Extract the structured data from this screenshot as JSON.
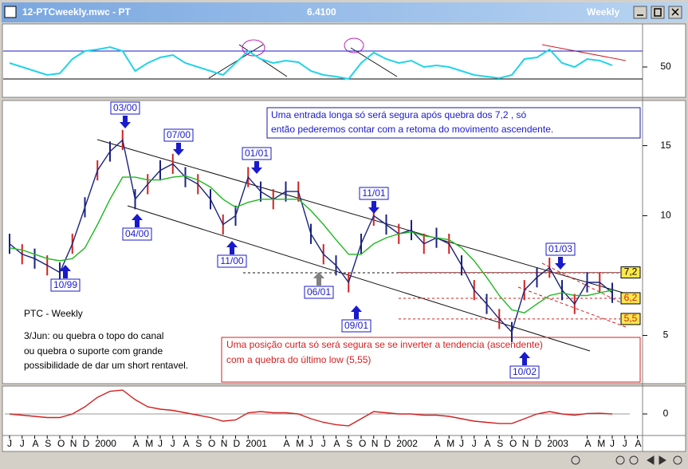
{
  "window": {
    "title": "12-PTCweekly.mwc - PT",
    "last_price": "6.4100",
    "period": "Weekly"
  },
  "chart_data": [
    {
      "type": "line",
      "ylim": [
        14,
        102
      ],
      "yticks": [
        50
      ],
      "bands": [
        70,
        35
      ],
      "series": [
        {
          "name": "Oscillator",
          "color": "#22d3e8",
          "values": [
            55,
            50,
            45,
            40,
            42,
            60,
            70,
            72,
            75,
            70,
            45,
            55,
            62,
            65,
            55,
            50,
            45,
            40,
            55,
            70,
            60,
            55,
            58,
            56,
            45,
            40,
            38,
            35,
            55,
            68,
            60,
            55,
            58,
            50,
            52,
            50,
            45,
            40,
            38,
            36,
            40,
            60,
            62,
            72,
            55,
            50,
            60,
            58,
            52,
            null,
            null
          ]
        }
      ]
    },
    {
      "type": "line",
      "log": true,
      "ylim": [
        3.8,
        19.3
      ],
      "yticks": [
        5,
        10,
        15
      ],
      "title": "PTC - Weekly",
      "notes": [
        "3/Jun: ou quebra o topo do canal",
        "ou quebra o suporte com grande",
        "possibilidade de dar um short rentavel."
      ],
      "long_note": [
        "Uma entrada longa só será segura após quebra dos 7,2 , só",
        "então pederemos contar com a retoma do movimento ascendente."
      ],
      "short_note": [
        "Uma posição curta só será segura se se inverter a tendencia (ascendente)",
        "com a quebra do último low (5,55)"
      ],
      "levels": [
        {
          "value": 7.2,
          "label": "7,2"
        },
        {
          "value": 6.2,
          "label": "6,2"
        },
        {
          "value": 5.5,
          "label": "5,5"
        }
      ],
      "markers": [
        "10/99",
        "03/00",
        "04/00",
        "07/00",
        "11/00",
        "01/01",
        "06/01",
        "09/01",
        "11/01",
        "10/02",
        "01/03"
      ],
      "series": [
        {
          "name": "Close",
          "color": "#1a237e",
          "values": [
            8.5,
            8,
            7.8,
            7.5,
            7.2,
            8.5,
            10.5,
            13,
            14.5,
            15.5,
            11,
            12,
            13,
            13.5,
            12.5,
            12,
            11,
            9.5,
            10,
            12.5,
            11.5,
            11,
            11.5,
            11.5,
            9,
            8,
            7.5,
            6.8,
            8.5,
            10,
            9.5,
            9,
            9.2,
            8.5,
            8.8,
            8.5,
            7.5,
            6.5,
            6,
            5.5,
            5.1,
            6.5,
            7,
            7.4,
            6.5,
            6,
            6.8,
            6.8,
            6.4,
            null,
            null
          ]
        },
        {
          "name": "Average",
          "color": "#1fb81f",
          "values": [
            8.3,
            8.2,
            8,
            7.8,
            7.7,
            7.8,
            8.3,
            9.5,
            11,
            12.5,
            12.5,
            12.3,
            12.3,
            12.5,
            12.6,
            12.3,
            11.8,
            11,
            10.5,
            10.8,
            11,
            11,
            11,
            11,
            10.3,
            9.5,
            8.7,
            8,
            8,
            8.5,
            8.8,
            9,
            9.1,
            8.9,
            8.8,
            8.7,
            8.3,
            7.7,
            7,
            6.3,
            5.8,
            5.7,
            6,
            6.3,
            6.4,
            6.3,
            6.3,
            6.4,
            6.5,
            null,
            null
          ]
        }
      ]
    },
    {
      "type": "line",
      "ylim": [
        -0.87,
        1.17
      ],
      "yticks": [
        0
      ],
      "categories": [
        "J",
        "J",
        "A",
        "S",
        "O",
        "N",
        "D",
        "2000",
        null,
        null,
        "A",
        "M",
        "J",
        "J",
        "A",
        "S",
        "O",
        "N",
        "D",
        "2001",
        null,
        null,
        "A",
        "M",
        "J",
        "J",
        "A",
        "S",
        "O",
        "N",
        "D",
        "2002",
        null,
        null,
        "A",
        "M",
        "J",
        "J",
        "A",
        "S",
        "O",
        "N",
        "D",
        "2003",
        null,
        null,
        "A",
        "M",
        "J",
        "J",
        "A"
      ],
      "series": [
        {
          "name": "MACD",
          "color": "#d32020",
          "values": [
            0,
            -0.05,
            -0.1,
            -0.15,
            -0.15,
            0,
            0.3,
            0.7,
            0.95,
            1.0,
            0.6,
            0.3,
            0.2,
            0.15,
            0.05,
            -0.05,
            -0.15,
            -0.3,
            -0.25,
            0.05,
            0.1,
            0.05,
            0.05,
            0,
            -0.2,
            -0.35,
            -0.45,
            -0.5,
            -0.2,
            0.1,
            0.05,
            0,
            0,
            -0.05,
            -0.05,
            -0.1,
            -0.2,
            -0.3,
            -0.35,
            -0.4,
            -0.4,
            -0.2,
            0,
            0.1,
            0,
            -0.05,
            0.02,
            0.03,
            0,
            null,
            null
          ]
        }
      ]
    }
  ]
}
